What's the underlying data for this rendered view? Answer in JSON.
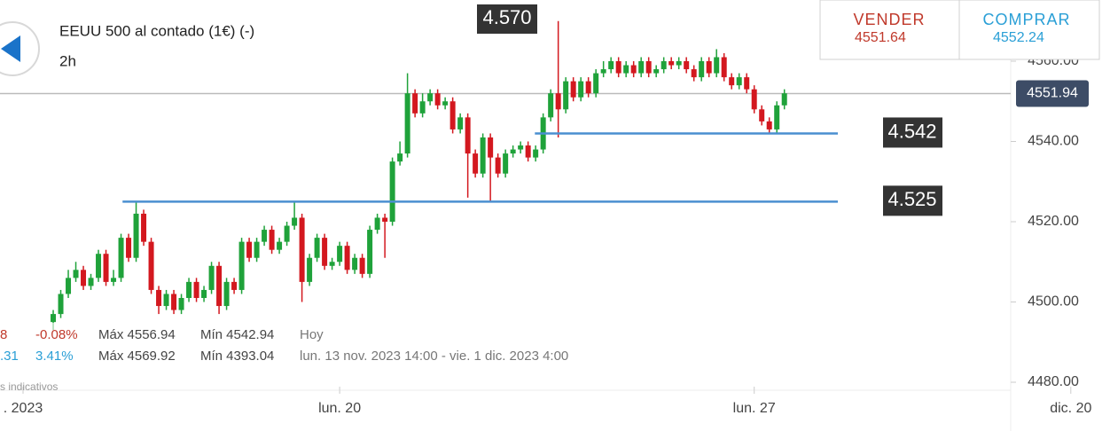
{
  "header": {
    "title": "EEUU 500 al contado (1€) (-)",
    "timeframe": "2h"
  },
  "quote": {
    "sell_label": "VENDER",
    "sell_price": "4551.64",
    "buy_label": "COMPRAR",
    "buy_price": "4552.24"
  },
  "info": {
    "rows": [
      [
        "8",
        "-0.08%",
        "Máx 4556.94",
        "Mín 4542.94",
        "Hoy"
      ],
      [
        ".31",
        "3.41%",
        "Máx 4569.92",
        "Mín 4393.04",
        "lun. 13 nov. 2023 14:00 - vie. 1 dic. 2023 4:00"
      ]
    ],
    "note": "s indicativos"
  },
  "chart_data": {
    "type": "candlestick",
    "up_color": "#1fa23a",
    "down_color": "#d3181f",
    "xlim": [
      -7.06,
      140.2
    ],
    "xticks": [
      {
        "value": -4,
        "label": ". 2023"
      },
      {
        "value": 38,
        "label": "lun. 20"
      },
      {
        "value": 93,
        "label": "lun. 27"
      },
      {
        "value": 135,
        "label": "dic. 20"
      }
    ],
    "ylim": [
      4467.85,
      4575.25
    ],
    "yticks": [
      {
        "value": 4480,
        "label": "4480.00"
      },
      {
        "value": 4500,
        "label": "4500.00"
      },
      {
        "value": 4520,
        "label": "4520.00"
      },
      {
        "value": 4540,
        "label": "4540.00"
      },
      {
        "value": 4560,
        "label": "4560.00"
      }
    ],
    "current_price": 4551.94,
    "levels": [
      {
        "value": 4542,
        "label": "4.542"
      },
      {
        "value": 4525,
        "label": "4.525"
      }
    ],
    "high_marker": {
      "value": 4570,
      "label": "4.570"
    },
    "open": [
      4495,
      4497,
      4502,
      4506,
      4508,
      4504,
      4506,
      4512,
      4505,
      4506,
      4516,
      4511,
      4522,
      4515,
      4503,
      4499,
      4502,
      4498,
      4501,
      4505,
      4501,
      4503,
      4509,
      4499,
      4505,
      4503,
      4515,
      4511,
      4515,
      4518,
      4513,
      4515,
      4519,
      4521,
      4505,
      4511,
      4516,
      4509,
      4510,
      4514,
      4508,
      4511,
      4507,
      4518,
      4521,
      4520,
      4535,
      4537,
      4552,
      4547,
      4550,
      4552,
      4549,
      4550,
      4543,
      4546,
      4537,
      4532,
      4541,
      4536,
      4532,
      4537,
      4538,
      4539,
      4536,
      4538,
      4546,
      4552,
      4548,
      4555,
      4551,
      4555,
      4552,
      4557,
      4558,
      4560,
      4557,
      4559,
      4557,
      4560,
      4557,
      4558,
      4560,
      4559,
      4560,
      4558,
      4556,
      4560,
      4557,
      4561,
      4556,
      4554,
      4556,
      4553,
      4548,
      4545,
      4543,
      4549
    ],
    "high": [
      4498,
      4503,
      4508,
      4510,
      4509,
      4507,
      4513,
      4513,
      4508,
      4517,
      4517,
      4525,
      4523,
      4516,
      4504,
      4503,
      4503,
      4502,
      4506,
      4506,
      4504,
      4510,
      4510,
      4506,
      4506,
      4516,
      4516,
      4516,
      4519,
      4519,
      4516,
      4520,
      4525,
      4522,
      4512,
      4517,
      4517,
      4511,
      4515,
      4515,
      4512,
      4512,
      4519,
      4522,
      4522,
      4536,
      4540,
      4557,
      4553,
      4552,
      4553,
      4553,
      4551,
      4551,
      4547,
      4547,
      4538,
      4542,
      4542,
      4537,
      4538,
      4539,
      4540,
      4540,
      4539,
      4547,
      4553,
      4570,
      4556,
      4556,
      4556,
      4556,
      4558,
      4560,
      4561,
      4561,
      4560,
      4560,
      4561,
      4561,
      4559,
      4561,
      4561,
      4561,
      4561,
      4559,
      4561,
      4561,
      4563,
      4562,
      4557,
      4557,
      4557,
      4554,
      4549,
      4546,
      4550,
      4553
    ],
    "low": [
      4493,
      4496,
      4501,
      4505,
      4503,
      4503,
      4505,
      4504,
      4504,
      4505,
      4510,
      4510,
      4514,
      4502,
      4497,
      4498,
      4497,
      4497,
      4500,
      4500,
      4500,
      4502,
      4497,
      4498,
      4502,
      4502,
      4510,
      4510,
      4514,
      4512,
      4512,
      4514,
      4518,
      4500,
      4504,
      4510,
      4508,
      4508,
      4509,
      4507,
      4507,
      4506,
      4506,
      4517,
      4511,
      4519,
      4534,
      4536,
      4546,
      4546,
      4549,
      4548,
      4548,
      4542,
      4542,
      4526,
      4531,
      4531,
      4525,
      4531,
      4531,
      4536,
      4537,
      4535,
      4535,
      4537,
      4545,
      4541,
      4547,
      4550,
      4550,
      4551,
      4551,
      4556,
      4557,
      4556,
      4556,
      4556,
      4556,
      4556,
      4556,
      4557,
      4558,
      4558,
      4557,
      4555,
      4555,
      4556,
      4556,
      4555,
      4553,
      4553,
      4552,
      4547,
      4544,
      4542,
      4542,
      4548
    ],
    "close": [
      4497,
      4502,
      4506,
      4508,
      4504,
      4506,
      4512,
      4505,
      4506,
      4516,
      4511,
      4522,
      4515,
      4503,
      4499,
      4502,
      4498,
      4501,
      4505,
      4501,
      4503,
      4509,
      4499,
      4505,
      4503,
      4515,
      4511,
      4515,
      4518,
      4513,
      4515,
      4519,
      4521,
      4505,
      4511,
      4516,
      4509,
      4510,
      4514,
      4508,
      4511,
      4507,
      4518,
      4521,
      4520,
      4535,
      4537,
      4552,
      4547,
      4550,
      4552,
      4549,
      4550,
      4543,
      4546,
      4537,
      4532,
      4541,
      4536,
      4532,
      4537,
      4538,
      4539,
      4536,
      4538,
      4546,
      4552,
      4548,
      4555,
      4551,
      4555,
      4552,
      4557,
      4558,
      4560,
      4557,
      4559,
      4557,
      4560,
      4557,
      4558,
      4560,
      4559,
      4560,
      4558,
      4556,
      4560,
      4557,
      4561,
      4556,
      4554,
      4556,
      4553,
      4548,
      4545,
      4543,
      4549,
      4552
    ]
  }
}
